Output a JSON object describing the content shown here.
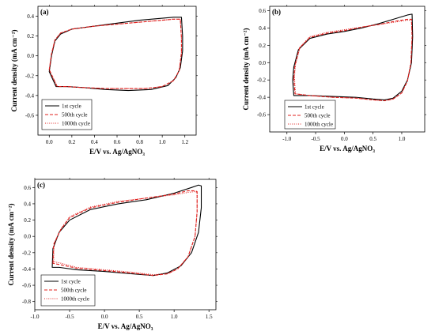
{
  "chart_data": [
    {
      "type": "line",
      "panel_label": "(a)",
      "xlabel": "E/V vs. Ag/AgNO₃",
      "ylabel": "Current density (mA cm⁻²)",
      "xlim": [
        -0.1,
        1.3
      ],
      "ylim": [
        -0.8,
        0.5
      ],
      "xticks": [
        0.0,
        0.2,
        0.4,
        0.6,
        0.8,
        1.0,
        1.2
      ],
      "xtick_labels": [
        "0.0",
        "0.2",
        "0.4",
        "0.6",
        "0.8",
        "1.0",
        "1.2"
      ],
      "yticks": [
        -0.6,
        -0.4,
        -0.2,
        0.0,
        0.2,
        0.4
      ],
      "ytick_labels": [
        "-0.6",
        "-0.4",
        "-0.2",
        "0.0",
        "0.2",
        "0.4"
      ],
      "legend": {
        "placement": "bottom-left"
      },
      "series": [
        {
          "name": "1st cycle",
          "style": "solid",
          "color": "#000000",
          "x": [
            0.0,
            0.02,
            0.05,
            0.1,
            0.2,
            0.4,
            0.6,
            0.8,
            1.0,
            1.1,
            1.17,
            1.18,
            1.18,
            1.16,
            1.12,
            1.05,
            0.9,
            0.7,
            0.5,
            0.3,
            0.15,
            0.06
          ],
          "y": [
            -0.16,
            0.0,
            0.15,
            0.22,
            0.27,
            0.3,
            0.33,
            0.36,
            0.38,
            0.39,
            0.39,
            0.2,
            0.05,
            -0.12,
            -0.22,
            -0.3,
            -0.34,
            -0.35,
            -0.34,
            -0.32,
            -0.31,
            -0.31
          ]
        },
        {
          "name": "500th cycle",
          "style": "dashed",
          "color": "#e0201e",
          "x": [
            0.0,
            0.02,
            0.05,
            0.1,
            0.2,
            0.4,
            0.6,
            0.8,
            1.0,
            1.1,
            1.16,
            1.17,
            1.17,
            1.15,
            1.1,
            1.0,
            0.85,
            0.7,
            0.5,
            0.3,
            0.15,
            0.07
          ],
          "y": [
            -0.14,
            0.02,
            0.16,
            0.23,
            0.27,
            0.3,
            0.32,
            0.34,
            0.36,
            0.37,
            0.37,
            0.18,
            0.03,
            -0.15,
            -0.25,
            -0.31,
            -0.33,
            -0.33,
            -0.33,
            -0.32,
            -0.31,
            -0.31
          ]
        },
        {
          "name": "1000th cycle",
          "style": "dotted",
          "color": "#e0201e",
          "x": [
            0.0,
            0.02,
            0.05,
            0.1,
            0.2,
            0.4,
            0.6,
            0.8,
            1.0,
            1.1,
            1.16,
            1.17,
            1.17,
            1.15,
            1.1,
            1.0,
            0.85,
            0.7,
            0.5,
            0.3,
            0.15,
            0.07
          ],
          "y": [
            -0.14,
            0.02,
            0.16,
            0.23,
            0.27,
            0.3,
            0.32,
            0.34,
            0.36,
            0.37,
            0.37,
            0.18,
            0.03,
            -0.15,
            -0.25,
            -0.31,
            -0.33,
            -0.33,
            -0.33,
            -0.32,
            -0.31,
            -0.31
          ]
        }
      ]
    },
    {
      "type": "line",
      "panel_label": "(b)",
      "xlabel": "E/V vs. Ag/AgNO₃",
      "ylabel": "Current density (mA cm⁻²)",
      "xlim": [
        -1.3,
        1.4
      ],
      "ylim": [
        -0.8,
        0.65
      ],
      "xticks": [
        -1.0,
        -0.5,
        0.0,
        0.5,
        1.0
      ],
      "xtick_labels": [
        "-1.0",
        "-0.5",
        "0.0",
        "0.5",
        "1.0"
      ],
      "yticks": [
        -0.6,
        -0.4,
        -0.2,
        0.0,
        0.2,
        0.4,
        0.6
      ],
      "ytick_labels": [
        "-0.6",
        "-0.4",
        "-0.2",
        "0.0",
        "0.2",
        "0.4",
        "0.6"
      ],
      "legend": {
        "placement": "bottom-right"
      },
      "series": [
        {
          "name": "1st cycle",
          "style": "solid",
          "color": "#000000",
          "x": [
            -0.9,
            -0.88,
            -0.8,
            -0.6,
            -0.3,
            0.0,
            0.3,
            0.6,
            0.9,
            1.1,
            1.18,
            1.19,
            1.17,
            1.1,
            1.0,
            0.85,
            0.7,
            0.5,
            0.2,
            -0.2,
            -0.6,
            -0.88
          ],
          "y": [
            -0.2,
            -0.05,
            0.15,
            0.28,
            0.33,
            0.36,
            0.4,
            0.45,
            0.51,
            0.55,
            0.56,
            0.3,
            0.0,
            -0.2,
            -0.33,
            -0.41,
            -0.43,
            -0.42,
            -0.4,
            -0.39,
            -0.38,
            -0.38
          ]
        },
        {
          "name": "500th cycle",
          "style": "dashed",
          "color": "#e0201e",
          "x": [
            -0.88,
            -0.86,
            -0.78,
            -0.6,
            -0.3,
            0.0,
            0.3,
            0.6,
            0.9,
            1.1,
            1.17,
            1.18,
            1.16,
            1.1,
            1.0,
            0.85,
            0.7,
            0.5,
            0.2,
            -0.2,
            -0.6,
            -0.86
          ],
          "y": [
            -0.18,
            -0.03,
            0.17,
            0.29,
            0.34,
            0.37,
            0.41,
            0.44,
            0.48,
            0.5,
            0.5,
            0.3,
            0.0,
            -0.21,
            -0.35,
            -0.42,
            -0.44,
            -0.43,
            -0.41,
            -0.4,
            -0.38,
            -0.36
          ]
        },
        {
          "name": "1000th cycle",
          "style": "dotted",
          "color": "#e0201e",
          "x": [
            -0.87,
            -0.85,
            -0.77,
            -0.6,
            -0.3,
            0.0,
            0.3,
            0.6,
            0.9,
            1.1,
            1.17,
            1.18,
            1.16,
            1.1,
            1.0,
            0.85,
            0.7,
            0.5,
            0.2,
            -0.2,
            -0.6,
            -0.85
          ],
          "y": [
            -0.17,
            -0.02,
            0.18,
            0.3,
            0.35,
            0.38,
            0.41,
            0.44,
            0.47,
            0.49,
            0.49,
            0.3,
            0.0,
            -0.21,
            -0.35,
            -0.42,
            -0.44,
            -0.43,
            -0.41,
            -0.4,
            -0.38,
            -0.36
          ]
        }
      ]
    },
    {
      "type": "line",
      "panel_label": "(c)",
      "xlabel": "E/V vs. Ag/AgNO₃",
      "ylabel": "Current density (mA cm⁻²)",
      "xlim": [
        -1.0,
        1.6
      ],
      "ylim": [
        -0.9,
        0.7
      ],
      "xticks": [
        -1.0,
        -0.5,
        0.0,
        0.5,
        1.0,
        1.5
      ],
      "xtick_labels": [
        "-1.0",
        "-0.5",
        "0.0",
        "0.5",
        "1.0",
        "1.5"
      ],
      "yticks": [
        -0.8,
        -0.6,
        -0.4,
        -0.2,
        0.0,
        0.2,
        0.4,
        0.6
      ],
      "ytick_labels": [
        "-0.8",
        "-0.6",
        "-0.4",
        "-0.2",
        "0.0",
        "0.2",
        "0.4",
        "0.6"
      ],
      "legend": {
        "placement": "bottom-left"
      },
      "series": [
        {
          "name": "1st cycle",
          "style": "solid",
          "color": "#000000",
          "x": [
            -0.75,
            -0.74,
            -0.65,
            -0.5,
            -0.2,
            0.2,
            0.6,
            1.0,
            1.25,
            1.35,
            1.39,
            1.39,
            1.35,
            1.25,
            1.1,
            0.9,
            0.7,
            0.4,
            0.0,
            -0.4,
            -0.65
          ],
          "y": [
            -0.38,
            -0.15,
            0.05,
            0.2,
            0.33,
            0.4,
            0.45,
            0.53,
            0.6,
            0.63,
            0.62,
            0.35,
            0.05,
            -0.2,
            -0.36,
            -0.45,
            -0.48,
            -0.46,
            -0.43,
            -0.41,
            -0.38
          ]
        },
        {
          "name": "500th cycle",
          "style": "dashed",
          "color": "#e0201e",
          "x": [
            -0.74,
            -0.73,
            -0.63,
            -0.5,
            -0.2,
            0.2,
            0.6,
            1.0,
            1.2,
            1.3,
            1.33,
            1.33,
            1.3,
            1.2,
            1.05,
            0.9,
            0.7,
            0.4,
            0.0,
            -0.4,
            -0.62
          ],
          "y": [
            -0.33,
            -0.1,
            0.08,
            0.23,
            0.35,
            0.42,
            0.47,
            0.52,
            0.56,
            0.56,
            0.55,
            0.3,
            0.0,
            -0.25,
            -0.4,
            -0.46,
            -0.48,
            -0.45,
            -0.42,
            -0.39,
            -0.35
          ]
        },
        {
          "name": "1000th cycle",
          "style": "dotted",
          "color": "#e0201e",
          "x": [
            -0.73,
            -0.72,
            -0.62,
            -0.5,
            -0.2,
            0.2,
            0.6,
            1.0,
            1.2,
            1.3,
            1.33,
            1.33,
            1.3,
            1.2,
            1.05,
            0.9,
            0.7,
            0.4,
            0.0,
            -0.4,
            -0.62
          ],
          "y": [
            -0.31,
            -0.08,
            0.1,
            0.24,
            0.36,
            0.43,
            0.47,
            0.51,
            0.54,
            0.55,
            0.54,
            0.3,
            0.0,
            -0.25,
            -0.4,
            -0.46,
            -0.47,
            -0.44,
            -0.41,
            -0.38,
            -0.33
          ]
        }
      ]
    }
  ]
}
